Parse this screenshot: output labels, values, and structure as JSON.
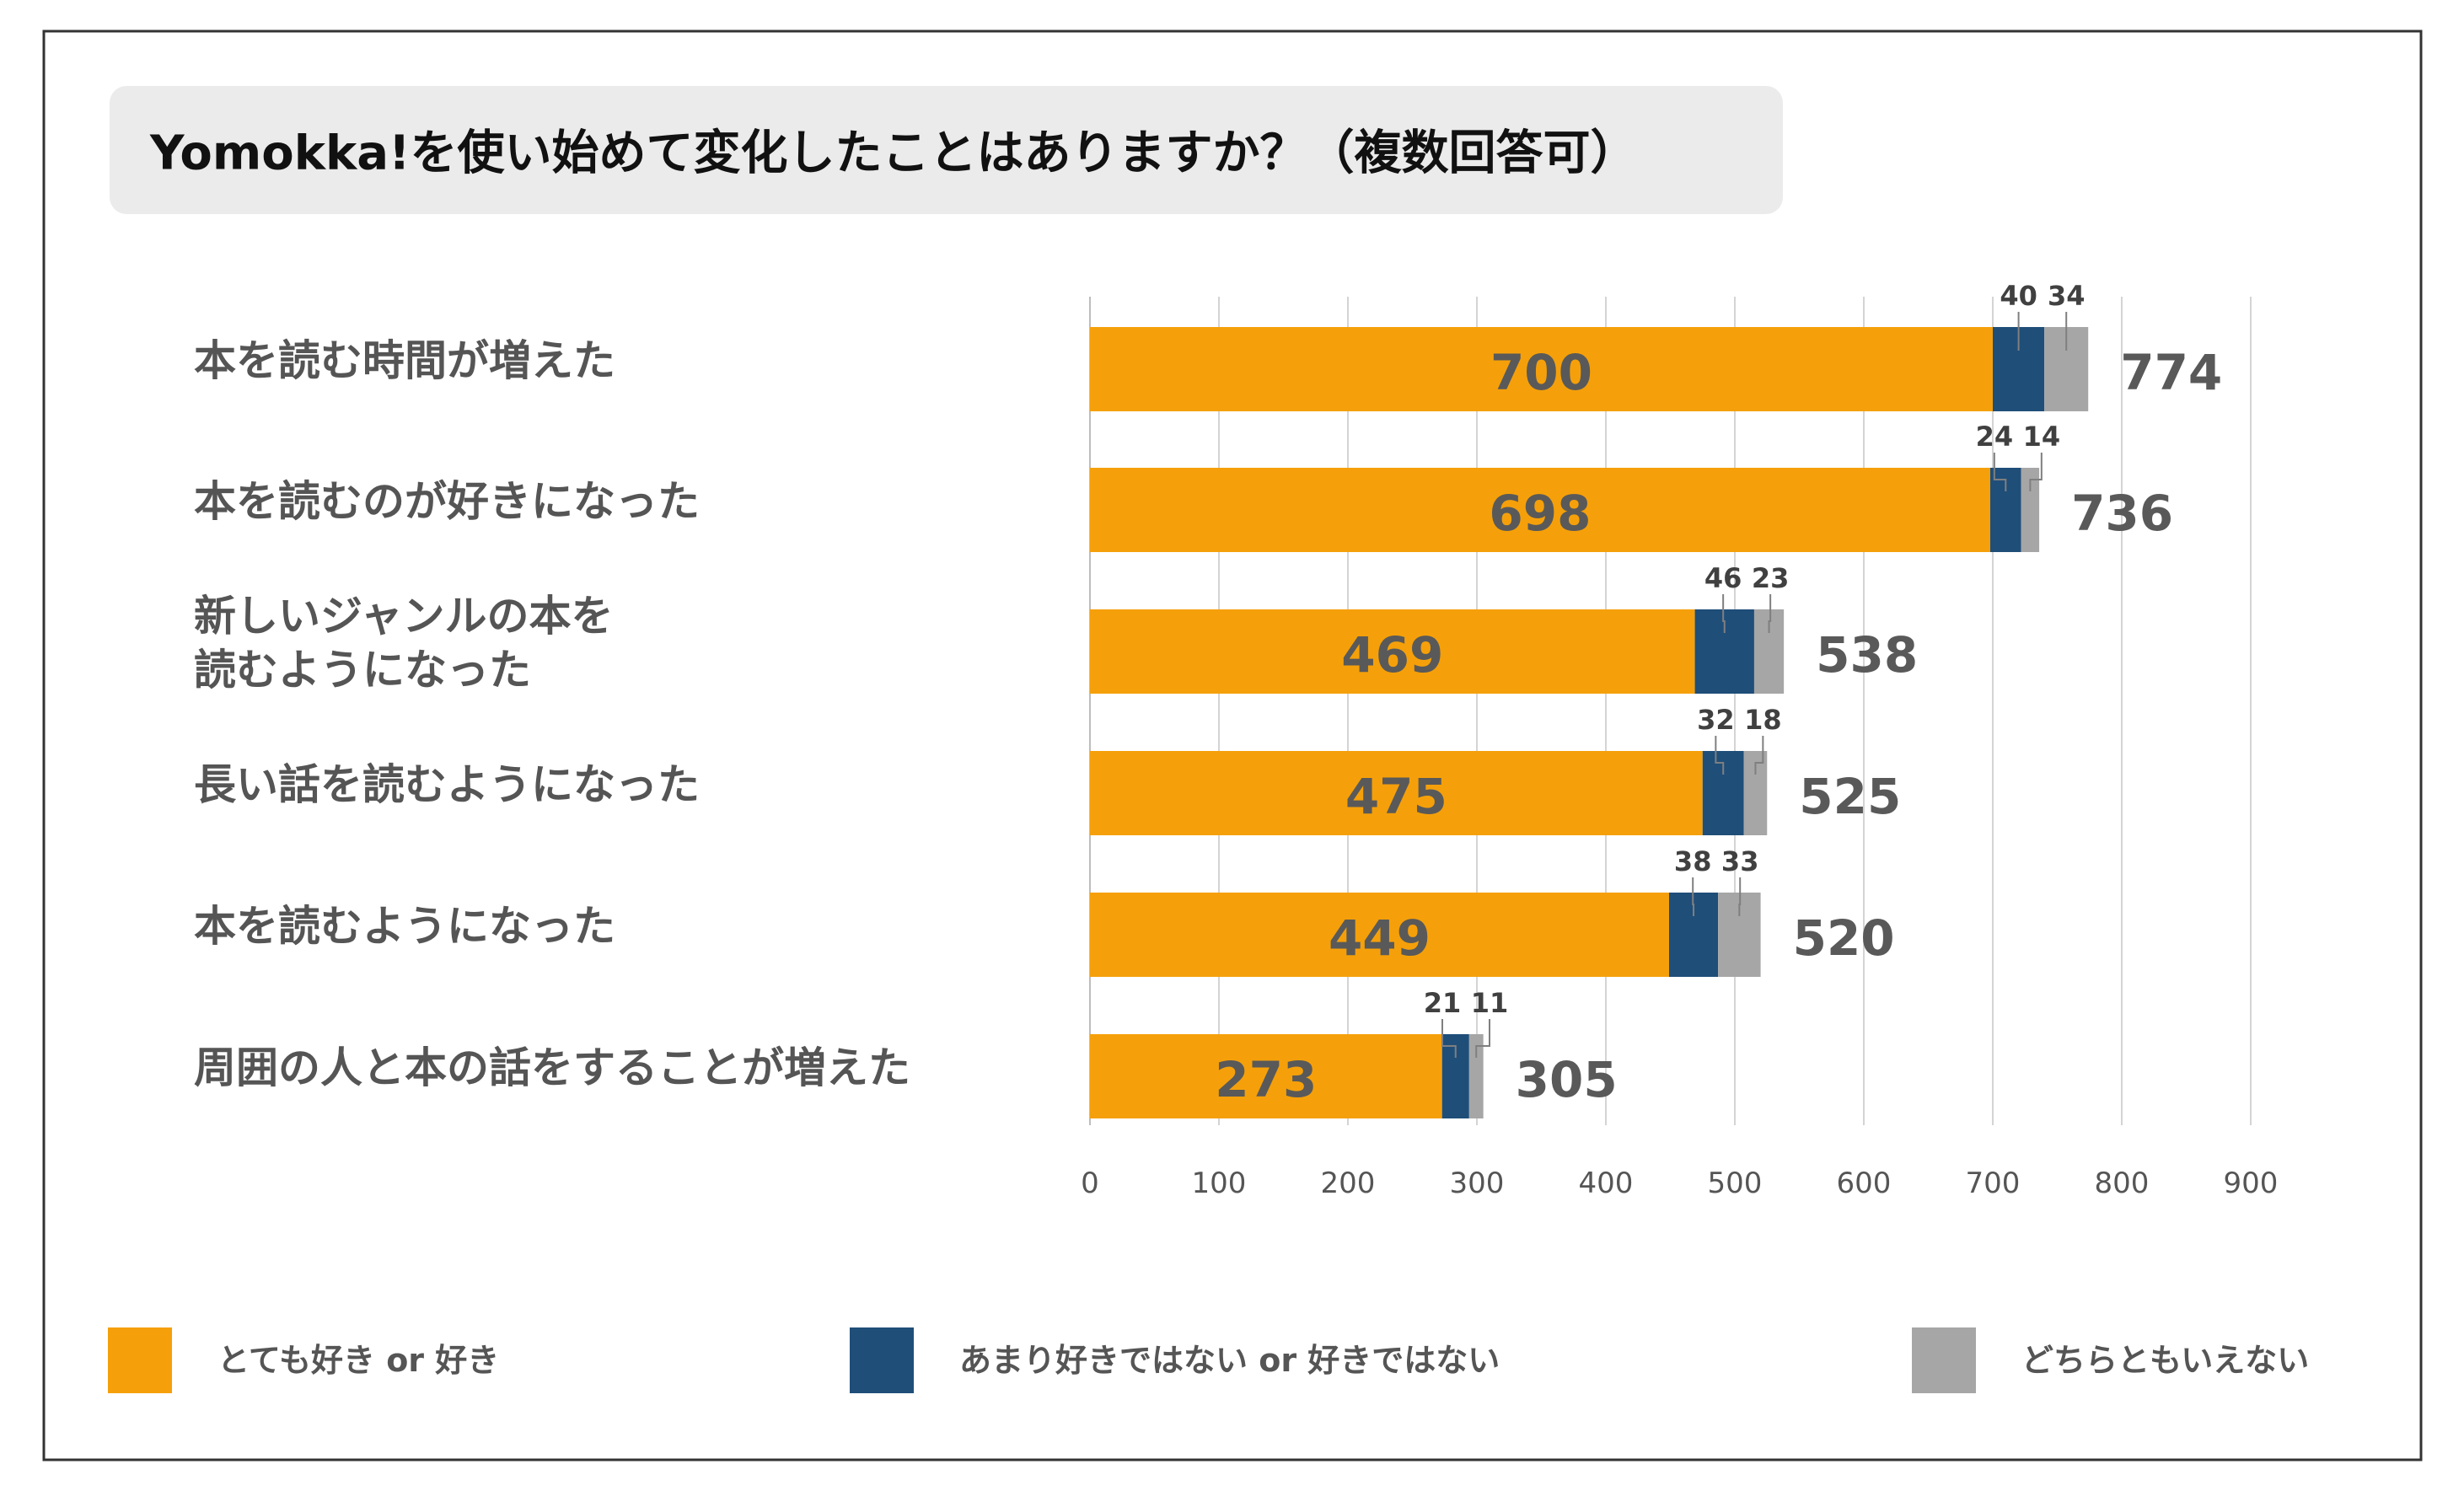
{
  "chart_data": {
    "type": "bar",
    "orientation": "horizontal",
    "stacked": true,
    "title": "Yomokka!を使い始めて変化したことはありますか？（複数回答可）",
    "categories": [
      [
        "本を読む時間が増えた"
      ],
      [
        "本を読むのが好きになった"
      ],
      [
        "新しいジャンルの本を",
        "読むようになった"
      ],
      [
        "長い話を読むようになった"
      ],
      [
        "本を読むようになった"
      ],
      [
        "周囲の人と本の話をすることが増えた"
      ]
    ],
    "series": [
      {
        "name": "とても好き or 好き",
        "color": "#f5a00a",
        "values": [
          700,
          698,
          469,
          475,
          449,
          273
        ]
      },
      {
        "name": "あまり好きではない or 好きではない",
        "color": "#1f4e79",
        "values": [
          40,
          24,
          46,
          32,
          38,
          21
        ]
      },
      {
        "name": "どちらともいえない",
        "color": "#a6a6a6",
        "values": [
          34,
          14,
          23,
          18,
          33,
          11
        ]
      }
    ],
    "totals": [
      774,
      736,
      538,
      525,
      520,
      305
    ],
    "xlim": [
      0,
      900
    ],
    "xticks": [
      0,
      100,
      200,
      300,
      400,
      500,
      600,
      700,
      800,
      900
    ],
    "grid": true,
    "legend": "bottom"
  }
}
